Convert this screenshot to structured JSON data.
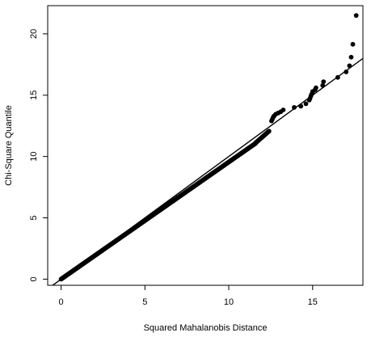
{
  "chart_data": {
    "type": "scatter",
    "xlabel": "Squared Mahalanobis Distance",
    "ylabel": "Chi-Square Quantile",
    "xlim": [
      -0.8,
      18.0
    ],
    "ylim": [
      -0.5,
      22.3
    ],
    "x_ticks": [
      0,
      5,
      10,
      15
    ],
    "y_ticks": [
      0,
      5,
      10,
      15,
      20
    ],
    "grid": false,
    "reference_line": {
      "type": "identity",
      "slope": 1,
      "intercept": 0
    },
    "dense_segments": [
      {
        "x_start": 0.0,
        "x_end": 11.6,
        "slope": 0.955,
        "intercept": 0.0,
        "count": 480
      },
      {
        "x_start": 11.6,
        "x_end": 12.4,
        "slope": 1.2,
        "intercept": -2.81,
        "count": 26
      }
    ],
    "points": [
      {
        "x": 12.55,
        "y": 12.9
      },
      {
        "x": 12.6,
        "y": 13.05
      },
      {
        "x": 12.65,
        "y": 13.2
      },
      {
        "x": 12.7,
        "y": 13.3
      },
      {
        "x": 12.8,
        "y": 13.45
      },
      {
        "x": 12.95,
        "y": 13.55
      },
      {
        "x": 13.1,
        "y": 13.65
      },
      {
        "x": 13.25,
        "y": 13.8
      },
      {
        "x": 13.9,
        "y": 14.0
      },
      {
        "x": 14.3,
        "y": 14.1
      },
      {
        "x": 14.6,
        "y": 14.3
      },
      {
        "x": 14.8,
        "y": 14.6
      },
      {
        "x": 14.85,
        "y": 14.75
      },
      {
        "x": 14.9,
        "y": 14.95
      },
      {
        "x": 14.95,
        "y": 15.1
      },
      {
        "x": 15.0,
        "y": 15.3
      },
      {
        "x": 15.15,
        "y": 15.45
      },
      {
        "x": 15.2,
        "y": 15.6
      },
      {
        "x": 15.6,
        "y": 15.8
      },
      {
        "x": 15.65,
        "y": 16.1
      },
      {
        "x": 16.5,
        "y": 16.45
      },
      {
        "x": 17.0,
        "y": 16.9
      },
      {
        "x": 17.2,
        "y": 17.4
      },
      {
        "x": 17.3,
        "y": 18.1
      },
      {
        "x": 17.4,
        "y": 19.15
      },
      {
        "x": 17.6,
        "y": 21.5
      }
    ]
  }
}
